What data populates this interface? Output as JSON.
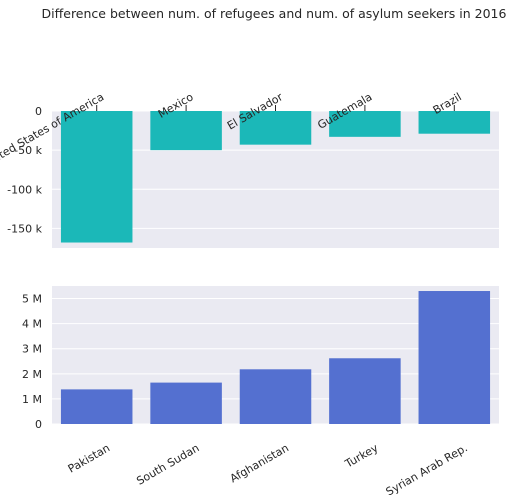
{
  "chart_data": [
    {
      "type": "bar",
      "title": "Difference between num. of refugees and num. of asylum seekers in 2016",
      "categories": [
        "United States of America",
        "Mexico",
        "El Salvador",
        "Guatemala",
        "Brazil"
      ],
      "values": [
        -168000,
        -50000,
        -43000,
        -33000,
        -29000
      ],
      "ylim": [
        -175000,
        0
      ],
      "yticks": [
        0,
        -50000,
        -100000,
        -150000
      ],
      "ytick_labels": [
        "0",
        "-50 k",
        "-100 k",
        "-150 k"
      ],
      "xaxis_position": "top",
      "color": "#1bb8b8",
      "grid": true
    },
    {
      "type": "bar",
      "categories": [
        "Pakistan",
        "South Sudan",
        "Afghanistan",
        "Turkey",
        "Syrian Arab Rep."
      ],
      "values": [
        1380000,
        1650000,
        2180000,
        2620000,
        5300000
      ],
      "ylim": [
        0,
        5500000
      ],
      "yticks": [
        0,
        1000000,
        2000000,
        3000000,
        4000000,
        5000000
      ],
      "ytick_labels": [
        "0",
        "1 M",
        "2 M",
        "3 M",
        "4 M",
        "5 M"
      ],
      "xaxis_position": "bottom",
      "color": "#5470d0",
      "grid": true
    }
  ]
}
